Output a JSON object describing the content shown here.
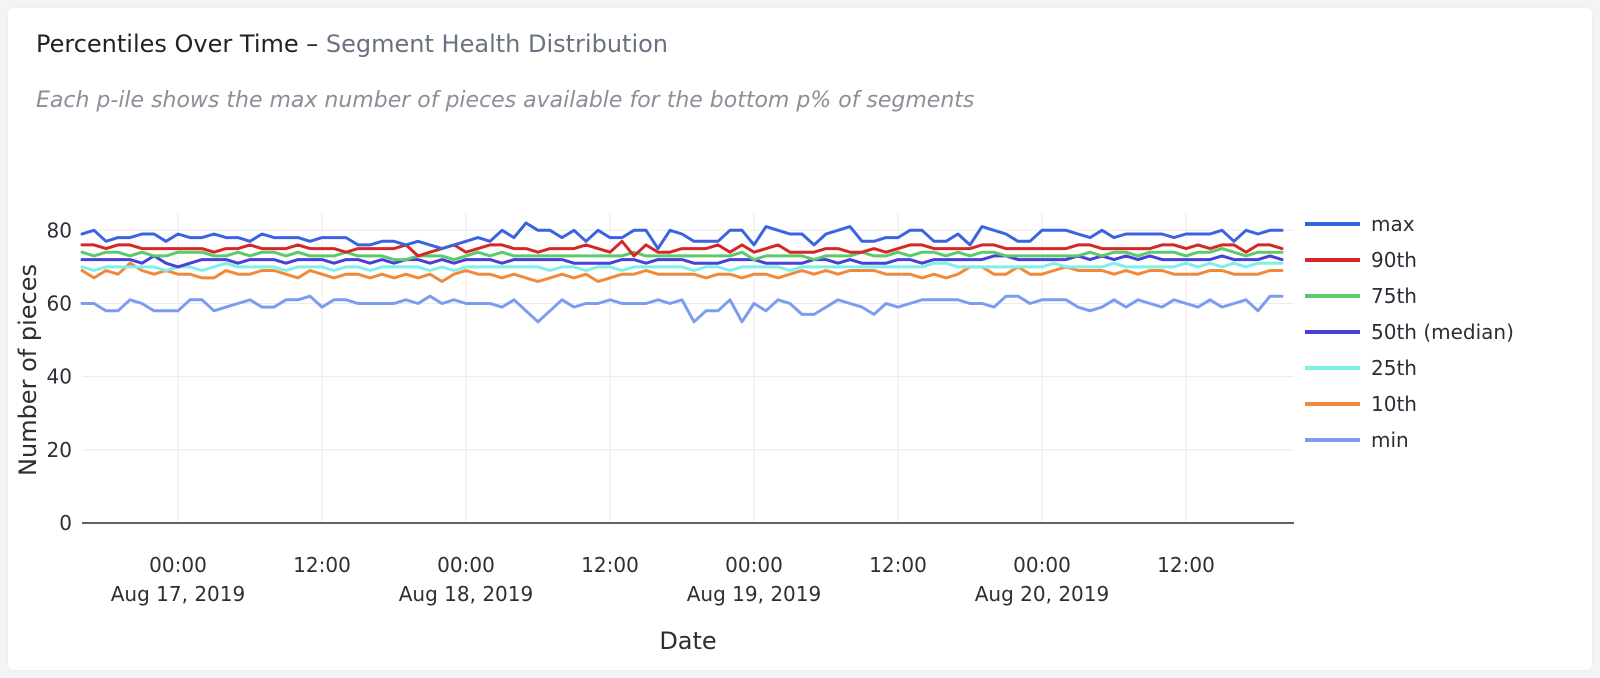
{
  "header": {
    "title": "Percentiles Over Time",
    "separator": "–",
    "title_secondary": "Segment Health Distribution",
    "subtitle": "Each p-ile shows the max number of pieces available for the bottom p% of segments"
  },
  "chart_data": {
    "type": "line",
    "xlabel": "Date",
    "ylabel": "Number of pieces",
    "x_start": "2019-08-16T16:00",
    "x_end": "2019-08-20T21:00",
    "x_step_hours": 1,
    "xlim": [
      "2019-08-16T16:00",
      "2019-08-20T21:00"
    ],
    "ylim": [
      0,
      85
    ],
    "yticks": [
      0,
      20,
      40,
      60,
      80
    ],
    "xticks": [
      {
        "x": "2019-08-17T00:00",
        "time": "00:00",
        "date": "Aug 17, 2019"
      },
      {
        "x": "2019-08-17T12:00",
        "time": "12:00",
        "date": ""
      },
      {
        "x": "2019-08-18T00:00",
        "time": "00:00",
        "date": "Aug 18, 2019"
      },
      {
        "x": "2019-08-18T12:00",
        "time": "12:00",
        "date": ""
      },
      {
        "x": "2019-08-19T00:00",
        "time": "00:00",
        "date": "Aug 19, 2019"
      },
      {
        "x": "2019-08-19T12:00",
        "time": "12:00",
        "date": ""
      },
      {
        "x": "2019-08-20T00:00",
        "time": "00:00",
        "date": "Aug 20, 2019"
      },
      {
        "x": "2019-08-20T12:00",
        "time": "12:00",
        "date": ""
      }
    ],
    "grid": true,
    "legend_position": "right",
    "series": [
      {
        "name": "max",
        "color": "#3a63e0",
        "values": [
          79,
          80,
          77,
          78,
          78,
          79,
          79,
          77,
          79,
          78,
          78,
          79,
          78,
          78,
          77,
          79,
          78,
          78,
          78,
          77,
          78,
          78,
          78,
          76,
          76,
          77,
          77,
          76,
          77,
          76,
          75,
          76,
          77,
          78,
          77,
          80,
          78,
          82,
          80,
          80,
          78,
          80,
          77,
          80,
          78,
          78,
          80,
          80,
          75,
          80,
          79,
          77,
          77,
          77,
          80,
          80,
          76,
          81,
          80,
          79,
          79,
          76,
          79,
          80,
          81,
          77,
          77,
          78,
          78,
          80,
          80,
          77,
          77,
          79,
          76,
          81,
          80,
          79,
          77,
          77,
          80,
          80,
          80,
          79,
          78,
          80,
          78,
          79,
          79,
          79,
          79,
          78,
          79,
          79,
          79,
          80,
          77,
          80,
          79,
          80,
          80
        ]
      },
      {
        "name": "90th",
        "color": "#d62728",
        "values": [
          76,
          76,
          75,
          76,
          76,
          75,
          75,
          75,
          75,
          75,
          75,
          74,
          75,
          75,
          76,
          75,
          75,
          75,
          76,
          75,
          75,
          75,
          74,
          75,
          75,
          75,
          75,
          76,
          73,
          74,
          75,
          76,
          74,
          75,
          76,
          76,
          75,
          75,
          74,
          75,
          75,
          75,
          76,
          75,
          74,
          77,
          73,
          76,
          74,
          74,
          75,
          75,
          75,
          76,
          74,
          76,
          74,
          75,
          76,
          74,
          74,
          74,
          75,
          75,
          74,
          74,
          75,
          74,
          75,
          76,
          76,
          75,
          75,
          75,
          75,
          76,
          76,
          75,
          75,
          75,
          75,
          75,
          75,
          76,
          76,
          75,
          75,
          75,
          75,
          75,
          76,
          76,
          75,
          76,
          75,
          76,
          76,
          74,
          76,
          76,
          75
        ]
      },
      {
        "name": "75th",
        "color": "#5cc96a",
        "values": [
          74,
          73,
          74,
          74,
          73,
          74,
          73,
          73,
          74,
          74,
          74,
          73,
          73,
          74,
          73,
          74,
          74,
          73,
          74,
          73,
          73,
          73,
          74,
          73,
          73,
          73,
          72,
          72,
          73,
          73,
          73,
          72,
          73,
          74,
          73,
          74,
          73,
          73,
          73,
          73,
          73,
          73,
          73,
          73,
          73,
          73,
          74,
          73,
          73,
          73,
          73,
          73,
          73,
          73,
          73,
          74,
          72,
          73,
          73,
          73,
          73,
          72,
          73,
          73,
          73,
          74,
          73,
          73,
          74,
          73,
          74,
          74,
          73,
          74,
          73,
          74,
          74,
          73,
          73,
          73,
          73,
          73,
          73,
          73,
          74,
          73,
          74,
          74,
          73,
          74,
          74,
          74,
          73,
          74,
          74,
          75,
          74,
          73,
          74,
          74,
          74
        ]
      },
      {
        "name": "50th (median)",
        "color": "#4a3fd8",
        "values": [
          72,
          72,
          72,
          72,
          72,
          71,
          73,
          71,
          70,
          71,
          72,
          72,
          72,
          71,
          72,
          72,
          72,
          71,
          72,
          72,
          72,
          71,
          72,
          72,
          71,
          72,
          71,
          72,
          72,
          71,
          72,
          71,
          72,
          72,
          72,
          71,
          72,
          72,
          72,
          72,
          72,
          71,
          71,
          71,
          71,
          72,
          72,
          71,
          72,
          72,
          72,
          71,
          71,
          71,
          72,
          72,
          72,
          71,
          71,
          71,
          71,
          72,
          72,
          71,
          72,
          71,
          71,
          71,
          72,
          72,
          71,
          72,
          72,
          72,
          72,
          72,
          73,
          73,
          72,
          72,
          72,
          72,
          72,
          73,
          72,
          73,
          72,
          73,
          72,
          73,
          72,
          72,
          72,
          72,
          72,
          73,
          72,
          72,
          72,
          73,
          72
        ]
      },
      {
        "name": "25th",
        "color": "#7ef0ea",
        "values": [
          70,
          69,
          70,
          70,
          70,
          70,
          70,
          69,
          70,
          70,
          69,
          70,
          71,
          70,
          70,
          70,
          70,
          69,
          70,
          70,
          70,
          69,
          70,
          70,
          69,
          70,
          70,
          70,
          70,
          69,
          70,
          69,
          70,
          70,
          70,
          70,
          70,
          70,
          70,
          69,
          70,
          70,
          69,
          70,
          70,
          69,
          70,
          70,
          70,
          70,
          70,
          69,
          70,
          70,
          69,
          70,
          70,
          70,
          70,
          69,
          70,
          70,
          70,
          70,
          70,
          70,
          70,
          70,
          70,
          70,
          70,
          71,
          71,
          70,
          70,
          70,
          70,
          70,
          70,
          70,
          70,
          71,
          70,
          70,
          70,
          70,
          71,
          70,
          70,
          70,
          70,
          70,
          71,
          70,
          71,
          70,
          71,
          70,
          71,
          71,
          71
        ]
      },
      {
        "name": "10th",
        "color": "#ef8a3c",
        "values": [
          69,
          67,
          69,
          68,
          71,
          69,
          68,
          69,
          68,
          68,
          67,
          67,
          69,
          68,
          68,
          69,
          69,
          68,
          67,
          69,
          68,
          67,
          68,
          68,
          67,
          68,
          67,
          68,
          67,
          68,
          66,
          68,
          69,
          68,
          68,
          67,
          68,
          67,
          66,
          67,
          68,
          67,
          68,
          66,
          67,
          68,
          68,
          69,
          68,
          68,
          68,
          68,
          67,
          68,
          68,
          67,
          68,
          68,
          67,
          68,
          69,
          68,
          69,
          68,
          69,
          69,
          69,
          68,
          68,
          68,
          67,
          68,
          67,
          68,
          70,
          70,
          68,
          68,
          70,
          68,
          68,
          69,
          70,
          69,
          69,
          69,
          68,
          69,
          68,
          69,
          69,
          68,
          68,
          68,
          69,
          69,
          68,
          68,
          68,
          69,
          69
        ]
      },
      {
        "name": "min",
        "color": "#7b9cf0",
        "values": [
          60,
          60,
          58,
          58,
          61,
          60,
          58,
          58,
          58,
          61,
          61,
          58,
          59,
          60,
          61,
          59,
          59,
          61,
          61,
          62,
          59,
          61,
          61,
          60,
          60,
          60,
          60,
          61,
          60,
          62,
          60,
          61,
          60,
          60,
          60,
          59,
          61,
          58,
          55,
          58,
          61,
          59,
          60,
          60,
          61,
          60,
          60,
          60,
          61,
          60,
          61,
          55,
          58,
          58,
          61,
          55,
          60,
          58,
          61,
          60,
          57,
          57,
          59,
          61,
          60,
          59,
          57,
          60,
          59,
          60,
          61,
          61,
          61,
          61,
          60,
          60,
          59,
          62,
          62,
          60,
          61,
          61,
          61,
          59,
          58,
          59,
          61,
          59,
          61,
          60,
          59,
          61,
          60,
          59,
          61,
          59,
          60,
          61,
          58,
          62,
          62
        ]
      }
    ]
  }
}
